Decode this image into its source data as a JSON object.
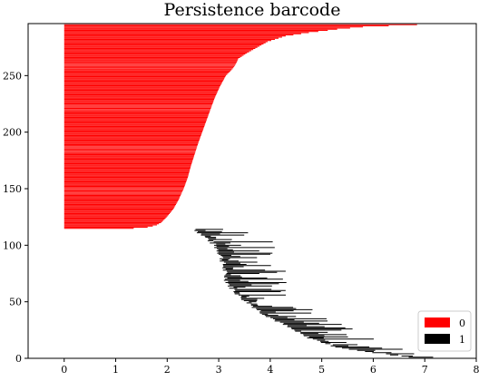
{
  "chart_data": {
    "type": "bar",
    "orientation": "horizontal",
    "title": "Persistence barcode",
    "xlabel": "",
    "ylabel": "",
    "xlim": [
      -0.7,
      8.0
    ],
    "ylim": [
      0,
      296
    ],
    "xticks": [
      0,
      1,
      2,
      3,
      4,
      5,
      6,
      7,
      8
    ],
    "yticks": [
      0,
      50,
      100,
      150,
      200,
      250
    ],
    "grid": false,
    "legend": {
      "placement": "bottom-right"
    },
    "series": [
      {
        "name": "0",
        "color": "#ff0000",
        "y_range": [
          115,
          295
        ],
        "births": 0.0,
        "death_curve": [
          [
            115,
            1.35
          ],
          [
            116,
            1.62
          ],
          [
            117,
            1.72
          ],
          [
            118,
            1.8
          ],
          [
            120,
            1.88
          ],
          [
            123,
            1.95
          ],
          [
            127,
            2.03
          ],
          [
            132,
            2.12
          ],
          [
            140,
            2.22
          ],
          [
            150,
            2.32
          ],
          [
            160,
            2.4
          ],
          [
            170,
            2.46
          ],
          [
            180,
            2.53
          ],
          [
            190,
            2.6
          ],
          [
            200,
            2.68
          ],
          [
            210,
            2.76
          ],
          [
            220,
            2.84
          ],
          [
            230,
            2.92
          ],
          [
            240,
            3.02
          ],
          [
            250,
            3.14
          ],
          [
            256,
            3.27
          ],
          [
            260,
            3.33
          ],
          [
            265,
            3.38
          ],
          [
            270,
            3.55
          ],
          [
            275,
            3.75
          ],
          [
            280,
            3.95
          ],
          [
            285,
            4.3
          ],
          [
            288,
            4.75
          ],
          [
            291,
            5.3
          ],
          [
            293,
            5.8
          ],
          [
            294,
            6.3
          ],
          [
            295,
            6.85
          ]
        ]
      },
      {
        "name": "1",
        "color": "#000000",
        "y_range": [
          0,
          114
        ],
        "birth_curve": [
          [
            114,
            2.55
          ],
          [
            110,
            2.65
          ],
          [
            105,
            2.8
          ],
          [
            100,
            2.92
          ],
          [
            95,
            3.0
          ],
          [
            90,
            3.05
          ],
          [
            85,
            3.08
          ],
          [
            80,
            3.1
          ],
          [
            75,
            3.12
          ],
          [
            70,
            3.15
          ],
          [
            65,
            3.2
          ],
          [
            60,
            3.3
          ],
          [
            55,
            3.4
          ],
          [
            50,
            3.55
          ],
          [
            45,
            3.7
          ],
          [
            40,
            3.85
          ],
          [
            35,
            4.05
          ],
          [
            30,
            4.25
          ],
          [
            25,
            4.45
          ],
          [
            20,
            4.65
          ],
          [
            15,
            4.95
          ],
          [
            10,
            5.3
          ],
          [
            6,
            5.8
          ],
          [
            4,
            6.2
          ],
          [
            2,
            6.55
          ],
          [
            0,
            6.85
          ]
        ],
        "length_range": [
          0.1,
          1.2
        ]
      }
    ]
  }
}
